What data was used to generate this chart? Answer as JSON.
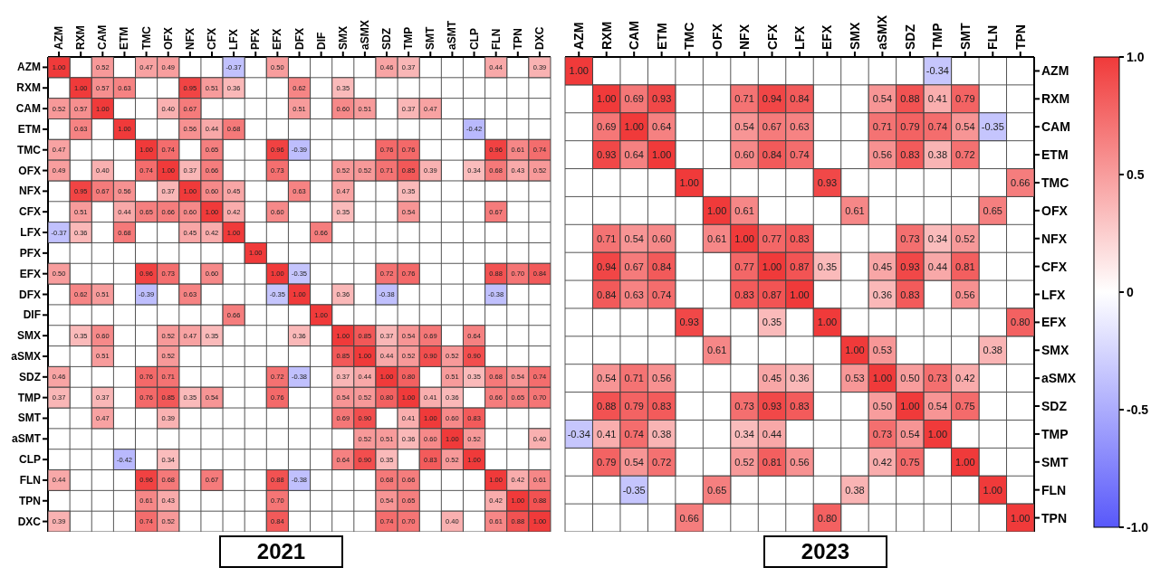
{
  "chart_data": [
    {
      "type": "heatmap",
      "title": "2021",
      "cell_labels": [
        [
          "1.00",
          null,
          "0.52",
          null,
          "0.47",
          "0.49",
          null,
          null,
          "-0.37",
          null,
          "0.50",
          null,
          null,
          null,
          null,
          "0.46",
          "0.37",
          null,
          null,
          null,
          "0.44",
          null,
          "0.39"
        ],
        [
          null,
          "1.00",
          "0.57",
          "0.63",
          null,
          null,
          "0.95",
          "0.51",
          "0.36",
          null,
          null,
          "0.62",
          null,
          "0.35",
          null,
          null,
          null,
          null,
          null,
          null,
          null,
          null,
          null
        ],
        [
          "0.52",
          "0.57",
          "1.00",
          null,
          null,
          "0.40",
          "0.67",
          null,
          null,
          null,
          null,
          "0.51",
          null,
          "0.60",
          "0.51",
          null,
          "0.37",
          "0.47",
          null,
          null,
          null,
          null,
          null
        ],
        [
          null,
          "0.63",
          null,
          "1.00",
          null,
          null,
          "0.56",
          "0.44",
          "0.68",
          null,
          null,
          null,
          null,
          null,
          null,
          null,
          null,
          null,
          null,
          "-0.42",
          null,
          null,
          null
        ],
        [
          "0.47",
          null,
          null,
          null,
          "1.00",
          "0.74",
          null,
          "0.65",
          null,
          null,
          "0.96",
          "-0.39",
          null,
          null,
          null,
          "0.76",
          "0.76",
          null,
          null,
          null,
          "0.96",
          "0.61",
          "0.74"
        ],
        [
          "0.49",
          null,
          "0.40",
          null,
          "0.74",
          "1.00",
          "0.37",
          "0.66",
          null,
          null,
          "0.73",
          null,
          null,
          "0.52",
          "0.52",
          "0.71",
          "0.85",
          "0.39",
          null,
          "0.34",
          "0.68",
          "0.43",
          "0.52"
        ],
        [
          null,
          "0.95",
          "0.67",
          "0.56",
          null,
          "0.37",
          "1.00",
          "0.60",
          "0.45",
          null,
          null,
          "0.63",
          null,
          "0.47",
          null,
          null,
          "0.35",
          null,
          null,
          null,
          null,
          null,
          null
        ],
        [
          null,
          "0.51",
          null,
          "0.44",
          "0.65",
          "0.66",
          "0.60",
          "1.00",
          "0.42",
          null,
          "0.60",
          null,
          null,
          "0.35",
          null,
          null,
          "0.54",
          null,
          null,
          null,
          "0.67",
          null,
          null
        ],
        [
          "-0.37",
          "0.36",
          null,
          "0.68",
          null,
          null,
          "0.45",
          "0.42",
          "1.00",
          null,
          null,
          null,
          "0.66",
          null,
          null,
          null,
          null,
          null,
          null,
          null,
          null,
          null,
          null
        ],
        [
          null,
          null,
          null,
          null,
          null,
          null,
          null,
          null,
          null,
          "1.00",
          null,
          null,
          null,
          null,
          null,
          null,
          null,
          null,
          null,
          null,
          null,
          null,
          null
        ],
        [
          "0.50",
          null,
          null,
          null,
          "0.96",
          "0.73",
          null,
          "0.60",
          null,
          null,
          "1.00",
          "-0.35",
          null,
          null,
          null,
          "0.72",
          "0.76",
          null,
          null,
          null,
          "0.88",
          "0.70",
          "0.84"
        ],
        [
          null,
          "0.62",
          "0.51",
          null,
          "-0.39",
          null,
          "0.63",
          null,
          null,
          null,
          "-0.35",
          "1.00",
          null,
          "0.36",
          null,
          "-0.38",
          null,
          null,
          null,
          null,
          "-0.38",
          null,
          null
        ],
        [
          null,
          null,
          null,
          null,
          null,
          null,
          null,
          null,
          "0.66",
          null,
          null,
          null,
          "1.00",
          null,
          null,
          null,
          null,
          null,
          null,
          null,
          null,
          null,
          null
        ],
        [
          null,
          "0.35",
          "0.60",
          null,
          null,
          "0.52",
          "0.47",
          "0.35",
          null,
          null,
          null,
          "0.36",
          null,
          "1.00",
          "0.85",
          "0.37",
          "0.54",
          "0.69",
          null,
          "0.64",
          null,
          null,
          null
        ],
        [
          null,
          null,
          "0.51",
          null,
          null,
          "0.52",
          null,
          null,
          null,
          null,
          null,
          null,
          null,
          "0.85",
          "1.00",
          "0.44",
          "0.52",
          "0.90",
          "0.52",
          "0.90",
          null,
          null,
          null
        ],
        [
          "0.46",
          null,
          null,
          null,
          "0.76",
          "0.71",
          null,
          null,
          null,
          null,
          "0.72",
          "-0.38",
          null,
          "0.37",
          "0.44",
          "1.00",
          "0.80",
          null,
          "0.51",
          "0.35",
          "0.68",
          "0.54",
          "0.74"
        ],
        [
          "0.37",
          null,
          "0.37",
          null,
          "0.76",
          "0.85",
          "0.35",
          "0.54",
          null,
          null,
          "0.76",
          null,
          null,
          "0.54",
          "0.52",
          "0.80",
          "1.00",
          "0.41",
          "0.36",
          null,
          "0.66",
          "0.65",
          "0.70"
        ],
        [
          null,
          null,
          "0.47",
          null,
          null,
          "0.39",
          null,
          null,
          null,
          null,
          null,
          null,
          null,
          "0.69",
          "0.90",
          null,
          "0.41",
          "1.00",
          "0.60",
          "0.83",
          null,
          null,
          null
        ],
        [
          null,
          null,
          null,
          null,
          null,
          null,
          null,
          null,
          null,
          null,
          null,
          null,
          null,
          null,
          "0.52",
          "0.51",
          "0.36",
          "0.60",
          "1.00",
          "0.52",
          null,
          null,
          "0.40"
        ],
        [
          null,
          null,
          null,
          "-0.42",
          null,
          "0.34",
          null,
          null,
          null,
          null,
          null,
          null,
          null,
          "0.64",
          "0.90",
          "0.35",
          null,
          "0.83",
          "0.52",
          "1.00",
          null,
          null,
          null
        ],
        [
          "0.44",
          null,
          null,
          null,
          "0.96",
          "0.68",
          null,
          "0.67",
          null,
          null,
          "0.88",
          "-0.38",
          null,
          null,
          null,
          "0.68",
          "0.66",
          null,
          null,
          null,
          "1.00",
          "0.42",
          "0.61"
        ],
        [
          null,
          null,
          null,
          null,
          "0.61",
          "0.43",
          null,
          null,
          null,
          null,
          "0.70",
          null,
          null,
          null,
          null,
          "0.54",
          "0.65",
          null,
          null,
          null,
          "0.42",
          "1.00",
          "0.88"
        ],
        [
          "0.39",
          null,
          null,
          null,
          "0.74",
          "0.52",
          null,
          null,
          null,
          null,
          "0.84",
          null,
          null,
          null,
          null,
          "0.74",
          "0.70",
          null,
          "0.40",
          null,
          "0.61",
          "0.88",
          "1.00"
        ]
      ],
      "categories": [
        "AZM",
        "RXM",
        "CAM",
        "ETM",
        "TMC",
        "OFX",
        "NFX",
        "CFX",
        "LFX",
        "PFX",
        "EFX",
        "DFX",
        "DIF",
        "SMX",
        "aSMX",
        "SDZ",
        "TMP",
        "SMT",
        "aSMT",
        "CLP",
        "FLN",
        "TPN",
        "DXC"
      ],
      "y_categories": [
        "AZM",
        "RXM",
        "CAM",
        "ETM",
        "TMC",
        "OFX",
        "NFX",
        "CFX",
        "LFX",
        "PFX",
        "EFX",
        "DFX",
        "DIF",
        "SMX",
        "aSMX",
        "SDZ",
        "TMP",
        "SMT",
        "aSMT",
        "CLP",
        "FLN",
        "TPN",
        "DXC"
      ],
      "cells": [
        [
          1,
          null,
          0.52,
          null,
          0.47,
          0.49,
          null,
          null,
          -0.37,
          null,
          0.5,
          null,
          null,
          null,
          null,
          0.46,
          0.37,
          null,
          null,
          null,
          0.44,
          null,
          0.39
        ],
        [
          null,
          1,
          0.57,
          0.63,
          null,
          null,
          0.95,
          0.51,
          0.36,
          null,
          null,
          0.62,
          null,
          0.35,
          null,
          null,
          null,
          null,
          null,
          null,
          null,
          null,
          null
        ],
        [
          0.52,
          0.57,
          1,
          null,
          null,
          0.4,
          0.67,
          null,
          null,
          null,
          null,
          0.51,
          null,
          0.6,
          0.51,
          null,
          0.37,
          0.47,
          null,
          null,
          null,
          null,
          null
        ],
        [
          null,
          0.63,
          null,
          1,
          null,
          null,
          0.56,
          0.44,
          0.68,
          null,
          null,
          null,
          null,
          null,
          null,
          null,
          null,
          null,
          null,
          -0.42,
          null,
          null,
          null
        ],
        [
          0.47,
          null,
          null,
          null,
          1,
          0.74,
          null,
          0.65,
          null,
          null,
          0.96,
          -0.39,
          null,
          null,
          null,
          0.76,
          0.76,
          null,
          null,
          null,
          0.96,
          0.61,
          0.74
        ],
        [
          0.49,
          null,
          0.4,
          null,
          0.74,
          1,
          0.37,
          0.66,
          null,
          null,
          0.73,
          null,
          null,
          0.52,
          0.52,
          0.71,
          0.85,
          0.39,
          null,
          0.34,
          0.68,
          0.43,
          0.52
        ],
        [
          null,
          0.95,
          0.67,
          0.56,
          null,
          0.37,
          1,
          0.6,
          0.45,
          null,
          null,
          0.63,
          null,
          0.47,
          null,
          null,
          0.35,
          null,
          null,
          null,
          null,
          null,
          null
        ],
        [
          null,
          0.51,
          null,
          0.44,
          0.65,
          0.66,
          0.6,
          1,
          0.42,
          null,
          0.6,
          null,
          null,
          0.35,
          null,
          null,
          0.54,
          null,
          null,
          null,
          0.67,
          null,
          null
        ],
        [
          -0.37,
          0.36,
          null,
          0.68,
          null,
          null,
          0.45,
          0.42,
          1,
          null,
          null,
          null,
          0.66,
          null,
          null,
          null,
          null,
          null,
          null,
          null,
          null,
          null,
          null
        ],
        [
          null,
          null,
          null,
          null,
          null,
          null,
          null,
          null,
          null,
          1,
          null,
          null,
          null,
          null,
          null,
          null,
          null,
          null,
          null,
          null,
          null,
          null,
          null
        ],
        [
          0.5,
          null,
          null,
          null,
          0.96,
          0.73,
          null,
          0.6,
          null,
          null,
          1,
          -0.35,
          null,
          null,
          null,
          0.72,
          0.76,
          null,
          null,
          null,
          0.88,
          0.7,
          0.84
        ],
        [
          null,
          0.62,
          0.51,
          null,
          -0.39,
          null,
          0.63,
          null,
          null,
          null,
          -0.35,
          1,
          null,
          0.36,
          null,
          -0.38,
          null,
          null,
          null,
          null,
          -0.38,
          null,
          null
        ],
        [
          null,
          null,
          null,
          null,
          null,
          null,
          null,
          null,
          0.66,
          null,
          null,
          null,
          1,
          null,
          null,
          null,
          null,
          null,
          null,
          null,
          null,
          null,
          null
        ],
        [
          null,
          0.35,
          0.6,
          null,
          null,
          0.52,
          0.47,
          0.35,
          null,
          null,
          null,
          0.36,
          null,
          1,
          0.85,
          0.37,
          0.54,
          0.69,
          null,
          0.64,
          null,
          null,
          null
        ],
        [
          null,
          null,
          0.51,
          null,
          null,
          0.52,
          null,
          null,
          null,
          null,
          null,
          null,
          null,
          0.85,
          1,
          0.44,
          0.52,
          0.9,
          0.52,
          0.9,
          null,
          null,
          null
        ],
        [
          0.46,
          null,
          null,
          null,
          0.76,
          0.71,
          null,
          null,
          null,
          null,
          0.72,
          -0.38,
          null,
          0.37,
          0.44,
          1,
          0.8,
          null,
          0.51,
          0.35,
          0.68,
          0.54,
          0.74
        ],
        [
          0.37,
          null,
          0.37,
          null,
          0.76,
          0.85,
          0.35,
          0.54,
          null,
          null,
          0.76,
          null,
          null,
          0.54,
          0.52,
          0.8,
          1,
          0.41,
          0.36,
          null,
          0.66,
          0.65,
          0.7
        ],
        [
          null,
          null,
          0.47,
          null,
          null,
          0.39,
          null,
          null,
          null,
          null,
          null,
          null,
          null,
          0.69,
          0.9,
          null,
          0.41,
          1,
          0.6,
          0.83,
          null,
          null,
          null
        ],
        [
          null,
          null,
          null,
          null,
          null,
          null,
          null,
          null,
          null,
          null,
          null,
          null,
          null,
          null,
          0.52,
          0.51,
          0.36,
          0.6,
          1,
          0.52,
          null,
          null,
          0.4
        ],
        [
          null,
          null,
          null,
          -0.42,
          null,
          0.34,
          null,
          null,
          null,
          null,
          null,
          null,
          null,
          0.64,
          0.9,
          0.35,
          null,
          0.83,
          0.52,
          1,
          null,
          null,
          null
        ],
        [
          0.44,
          null,
          null,
          null,
          0.96,
          0.68,
          null,
          0.67,
          null,
          null,
          0.88,
          -0.38,
          null,
          null,
          null,
          0.68,
          0.66,
          null,
          null,
          null,
          1,
          0.42,
          0.61
        ],
        [
          null,
          null,
          null,
          null,
          0.61,
          0.43,
          null,
          null,
          null,
          null,
          0.7,
          null,
          null,
          null,
          null,
          0.54,
          0.65,
          null,
          null,
          null,
          0.42,
          1,
          0.88
        ],
        [
          0.39,
          null,
          null,
          null,
          0.74,
          0.52,
          null,
          null,
          null,
          null,
          0.84,
          null,
          null,
          null,
          null,
          0.74,
          0.7,
          null,
          0.4,
          null,
          0.61,
          0.88,
          1
        ]
      ]
    },
    {
      "type": "heatmap",
      "title": "2023",
      "cell_labels": [
        [
          "1.00",
          null,
          null,
          null,
          null,
          null,
          null,
          null,
          null,
          null,
          null,
          null,
          null,
          "-0.34",
          null,
          null,
          null
        ],
        [
          null,
          "1.00",
          "0.69",
          "0.93",
          null,
          null,
          "0.71",
          "0.94",
          "0.84",
          null,
          null,
          "0.54",
          "0.88",
          "0.41",
          "0.79",
          null,
          null
        ],
        [
          null,
          "0.69",
          "1.00",
          "0.64",
          null,
          null,
          "0.54",
          "0.67",
          "0.63",
          null,
          null,
          "0.71",
          "0.79",
          "0.74",
          "0.54",
          "-0.35",
          null
        ],
        [
          null,
          "0.93",
          "0.64",
          "1.00",
          null,
          null,
          "0.60",
          "0.84",
          "0.74",
          null,
          null,
          "0.56",
          "0.83",
          "0.38",
          "0.72",
          null,
          null
        ],
        [
          null,
          null,
          null,
          null,
          "1.00",
          null,
          null,
          null,
          null,
          "0.93",
          null,
          null,
          null,
          null,
          null,
          null,
          "0.66"
        ],
        [
          null,
          null,
          null,
          null,
          null,
          "1.00",
          "0.61",
          null,
          null,
          null,
          "0.61",
          null,
          null,
          null,
          null,
          "0.65",
          null
        ],
        [
          null,
          "0.71",
          "0.54",
          "0.60",
          null,
          "0.61",
          "1.00",
          "0.77",
          "0.83",
          null,
          null,
          null,
          "0.73",
          "0.34",
          "0.52",
          null,
          null
        ],
        [
          null,
          "0.94",
          "0.67",
          "0.84",
          null,
          null,
          "0.77",
          "1.00",
          "0.87",
          "0.35",
          null,
          "0.45",
          "0.93",
          "0.44",
          "0.81",
          null,
          null
        ],
        [
          null,
          "0.84",
          "0.63",
          "0.74",
          null,
          null,
          "0.83",
          "0.87",
          "1.00",
          null,
          null,
          "0.36",
          "0.83",
          null,
          "0.56",
          null,
          null
        ],
        [
          null,
          null,
          null,
          null,
          "0.93",
          null,
          null,
          "0.35",
          null,
          "1.00",
          null,
          null,
          null,
          null,
          null,
          null,
          "0.80"
        ],
        [
          null,
          null,
          null,
          null,
          null,
          "0.61",
          null,
          null,
          null,
          null,
          "1.00",
          "0.53",
          null,
          null,
          null,
          "0.38",
          null
        ],
        [
          null,
          "0.54",
          "0.71",
          "0.56",
          null,
          null,
          null,
          "0.45",
          "0.36",
          null,
          "0.53",
          "1.00",
          "0.50",
          "0.73",
          "0.42",
          null,
          null
        ],
        [
          null,
          "0.88",
          "0.79",
          "0.83",
          null,
          null,
          "0.73",
          "0.93",
          "0.83",
          null,
          null,
          "0.50",
          "1.00",
          "0.54",
          "0.75",
          null,
          null
        ],
        [
          "-0.34",
          "0.41",
          "0.74",
          "0.38",
          null,
          null,
          "0.34",
          "0.44",
          null,
          null,
          null,
          "0.73",
          "0.54",
          "1.00",
          null,
          null,
          null
        ],
        [
          null,
          "0.79",
          "0.54",
          "0.72",
          null,
          null,
          "0.52",
          "0.81",
          "0.56",
          null,
          null,
          "0.42",
          "0.75",
          null,
          "1.00",
          null,
          null
        ],
        [
          null,
          null,
          "-0.35",
          null,
          null,
          "0.65",
          null,
          null,
          null,
          null,
          "0.38",
          null,
          null,
          null,
          null,
          "1.00",
          null
        ],
        [
          null,
          null,
          null,
          null,
          "0.66",
          null,
          null,
          null,
          null,
          "0.80",
          null,
          null,
          null,
          null,
          null,
          null,
          "1.00"
        ]
      ],
      "categories": [
        "AZM",
        "RXM",
        "CAM",
        "ETM",
        "TMC",
        "OFX",
        "NFX",
        "CFX",
        "LFX",
        "EFX",
        "SMX",
        "aSMX",
        "SDZ",
        "TMP",
        "SMT",
        "FLN",
        "TPN"
      ],
      "y_categories": [
        "AZM",
        "RXM",
        "CAM",
        "ETM",
        "TMC",
        "OFX",
        "NFX",
        "CFX",
        "LFX",
        "EFX",
        "SMX",
        "aSMX",
        "SDZ",
        "TMP",
        "SMT",
        "FLN",
        "TPN"
      ],
      "clim": [
        -1,
        1
      ],
      "cticks": [
        {
          "value": -1,
          "label": "-1.0"
        },
        {
          "value": -0.5,
          "label": "-0.5"
        },
        0,
        {
          "value": 0.5,
          "label": "0.5"
        },
        {
          "value": 1,
          "label": "1.0"
        }
      ],
      "cells": [
        [
          1,
          null,
          null,
          null,
          null,
          null,
          null,
          null,
          null,
          null,
          null,
          null,
          null,
          -0.34,
          null,
          null,
          null
        ],
        [
          null,
          1,
          0.69,
          0.93,
          null,
          null,
          0.71,
          0.94,
          0.84,
          null,
          null,
          0.54,
          0.88,
          0.41,
          0.79,
          null,
          null
        ],
        [
          null,
          0.69,
          1,
          0.64,
          null,
          null,
          0.54,
          0.67,
          0.63,
          null,
          null,
          0.71,
          0.79,
          0.74,
          0.54,
          -0.35,
          null
        ],
        [
          null,
          0.93,
          0.64,
          1,
          null,
          null,
          0.6,
          0.84,
          0.74,
          null,
          null,
          0.56,
          0.83,
          0.38,
          0.72,
          null,
          null
        ],
        [
          null,
          null,
          null,
          null,
          1,
          null,
          null,
          null,
          null,
          0.93,
          null,
          null,
          null,
          null,
          null,
          null,
          0.66
        ],
        [
          null,
          null,
          null,
          null,
          null,
          1,
          0.61,
          null,
          null,
          null,
          0.61,
          null,
          null,
          null,
          null,
          0.65,
          null
        ],
        [
          null,
          0.71,
          0.54,
          0.6,
          null,
          0.61,
          1,
          0.77,
          0.83,
          null,
          null,
          null,
          0.73,
          0.34,
          0.52,
          null,
          null
        ],
        [
          null,
          0.94,
          0.67,
          0.84,
          null,
          null,
          0.77,
          1,
          0.87,
          0.35,
          null,
          0.45,
          0.93,
          0.44,
          0.81,
          null,
          null
        ],
        [
          null,
          0.84,
          0.63,
          0.74,
          null,
          null,
          0.83,
          0.87,
          1,
          null,
          null,
          0.36,
          0.83,
          null,
          0.56,
          null,
          null
        ],
        [
          null,
          null,
          null,
          null,
          0.93,
          null,
          null,
          0.35,
          null,
          1,
          null,
          null,
          null,
          null,
          null,
          null,
          0.8
        ],
        [
          null,
          null,
          null,
          null,
          null,
          0.61,
          null,
          null,
          null,
          null,
          1,
          0.53,
          null,
          null,
          null,
          0.38,
          null
        ],
        [
          null,
          0.54,
          0.71,
          0.56,
          null,
          null,
          null,
          0.45,
          0.36,
          null,
          0.53,
          1,
          0.5,
          0.73,
          0.42,
          null,
          null
        ],
        [
          null,
          0.88,
          0.79,
          0.83,
          null,
          null,
          0.73,
          0.93,
          0.83,
          null,
          null,
          0.5,
          1,
          0.54,
          0.75,
          null,
          null
        ],
        [
          -0.34,
          0.41,
          0.74,
          0.38,
          null,
          null,
          0.34,
          0.44,
          null,
          null,
          null,
          0.73,
          0.54,
          1,
          null,
          null,
          null
        ],
        [
          null,
          0.79,
          0.54,
          0.72,
          null,
          null,
          0.52,
          0.81,
          0.56,
          null,
          null,
          0.42,
          0.75,
          null,
          1,
          null,
          null
        ],
        [
          null,
          null,
          -0.35,
          null,
          null,
          0.65,
          null,
          null,
          null,
          null,
          0.38,
          null,
          null,
          null,
          null,
          1,
          null
        ],
        [
          null,
          null,
          null,
          null,
          0.66,
          null,
          null,
          null,
          null,
          0.8,
          null,
          null,
          null,
          null,
          null,
          null,
          1
        ]
      ]
    }
  ]
}
